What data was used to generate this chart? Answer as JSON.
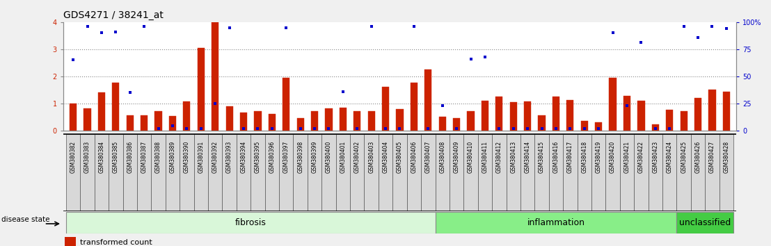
{
  "title": "GDS4271 / 38241_at",
  "samples": [
    "GSM380382",
    "GSM380383",
    "GSM380384",
    "GSM380385",
    "GSM380386",
    "GSM380387",
    "GSM380388",
    "GSM380389",
    "GSM380390",
    "GSM380391",
    "GSM380392",
    "GSM380393",
    "GSM380394",
    "GSM380395",
    "GSM380396",
    "GSM380397",
    "GSM380398",
    "GSM380399",
    "GSM380400",
    "GSM380401",
    "GSM380402",
    "GSM380403",
    "GSM380404",
    "GSM380405",
    "GSM380406",
    "GSM380407",
    "GSM380408",
    "GSM380409",
    "GSM380410",
    "GSM380411",
    "GSM380412",
    "GSM380413",
    "GSM380414",
    "GSM380415",
    "GSM380416",
    "GSM380417",
    "GSM380418",
    "GSM380419",
    "GSM380420",
    "GSM380421",
    "GSM380422",
    "GSM380423",
    "GSM380424",
    "GSM380425",
    "GSM380426",
    "GSM380427",
    "GSM380428"
  ],
  "transformed_count": [
    1.0,
    0.8,
    1.4,
    1.75,
    0.55,
    0.55,
    0.7,
    0.52,
    1.08,
    3.05,
    4.0,
    0.9,
    0.65,
    0.72,
    0.6,
    1.95,
    0.45,
    0.7,
    0.82,
    0.85,
    0.72,
    0.7,
    1.6,
    0.78,
    1.75,
    2.25,
    0.5,
    0.45,
    0.7,
    1.1,
    1.25,
    1.05,
    1.08,
    0.55,
    1.25,
    1.12,
    0.35,
    0.3,
    1.95,
    1.27,
    1.1,
    0.22,
    0.75,
    0.72,
    1.2,
    1.5,
    1.42
  ],
  "percentile_rank": [
    65,
    96,
    90,
    91,
    35,
    96,
    2,
    4,
    2,
    2,
    25,
    95,
    2,
    2,
    2,
    95,
    2,
    2,
    2,
    36,
    2,
    96,
    2,
    2,
    96,
    2,
    23,
    2,
    66,
    68,
    2,
    2,
    2,
    2,
    2,
    2,
    2,
    2,
    90,
    23,
    81,
    2,
    2,
    96,
    86,
    96,
    94
  ],
  "groups": [
    {
      "label": "fibrosis",
      "start": 0,
      "end": 26,
      "color": "#d9f7d9",
      "edge": "#888888"
    },
    {
      "label": "inflammation",
      "start": 26,
      "end": 43,
      "color": "#88ee88",
      "edge": "#888888"
    },
    {
      "label": "unclassified",
      "start": 43,
      "end": 47,
      "color": "#44cc44",
      "edge": "#888888"
    }
  ],
  "bar_color": "#cc2200",
  "scatter_color": "#0000cc",
  "ylim_left": [
    0,
    4
  ],
  "ylim_right": [
    0,
    100
  ],
  "yticks_left": [
    0,
    1,
    2,
    3,
    4
  ],
  "yticks_right": [
    0,
    25,
    50,
    75,
    100
  ],
  "ytick_labels_right": [
    "0",
    "25",
    "50",
    "75",
    "100%"
  ],
  "background_color": "#f0f0f0",
  "plot_bg_color": "#ffffff",
  "tick_bg_color": "#d8d8d8",
  "title_fontsize": 10,
  "tick_fontsize": 7,
  "group_fontsize": 9,
  "legend_fontsize": 8
}
